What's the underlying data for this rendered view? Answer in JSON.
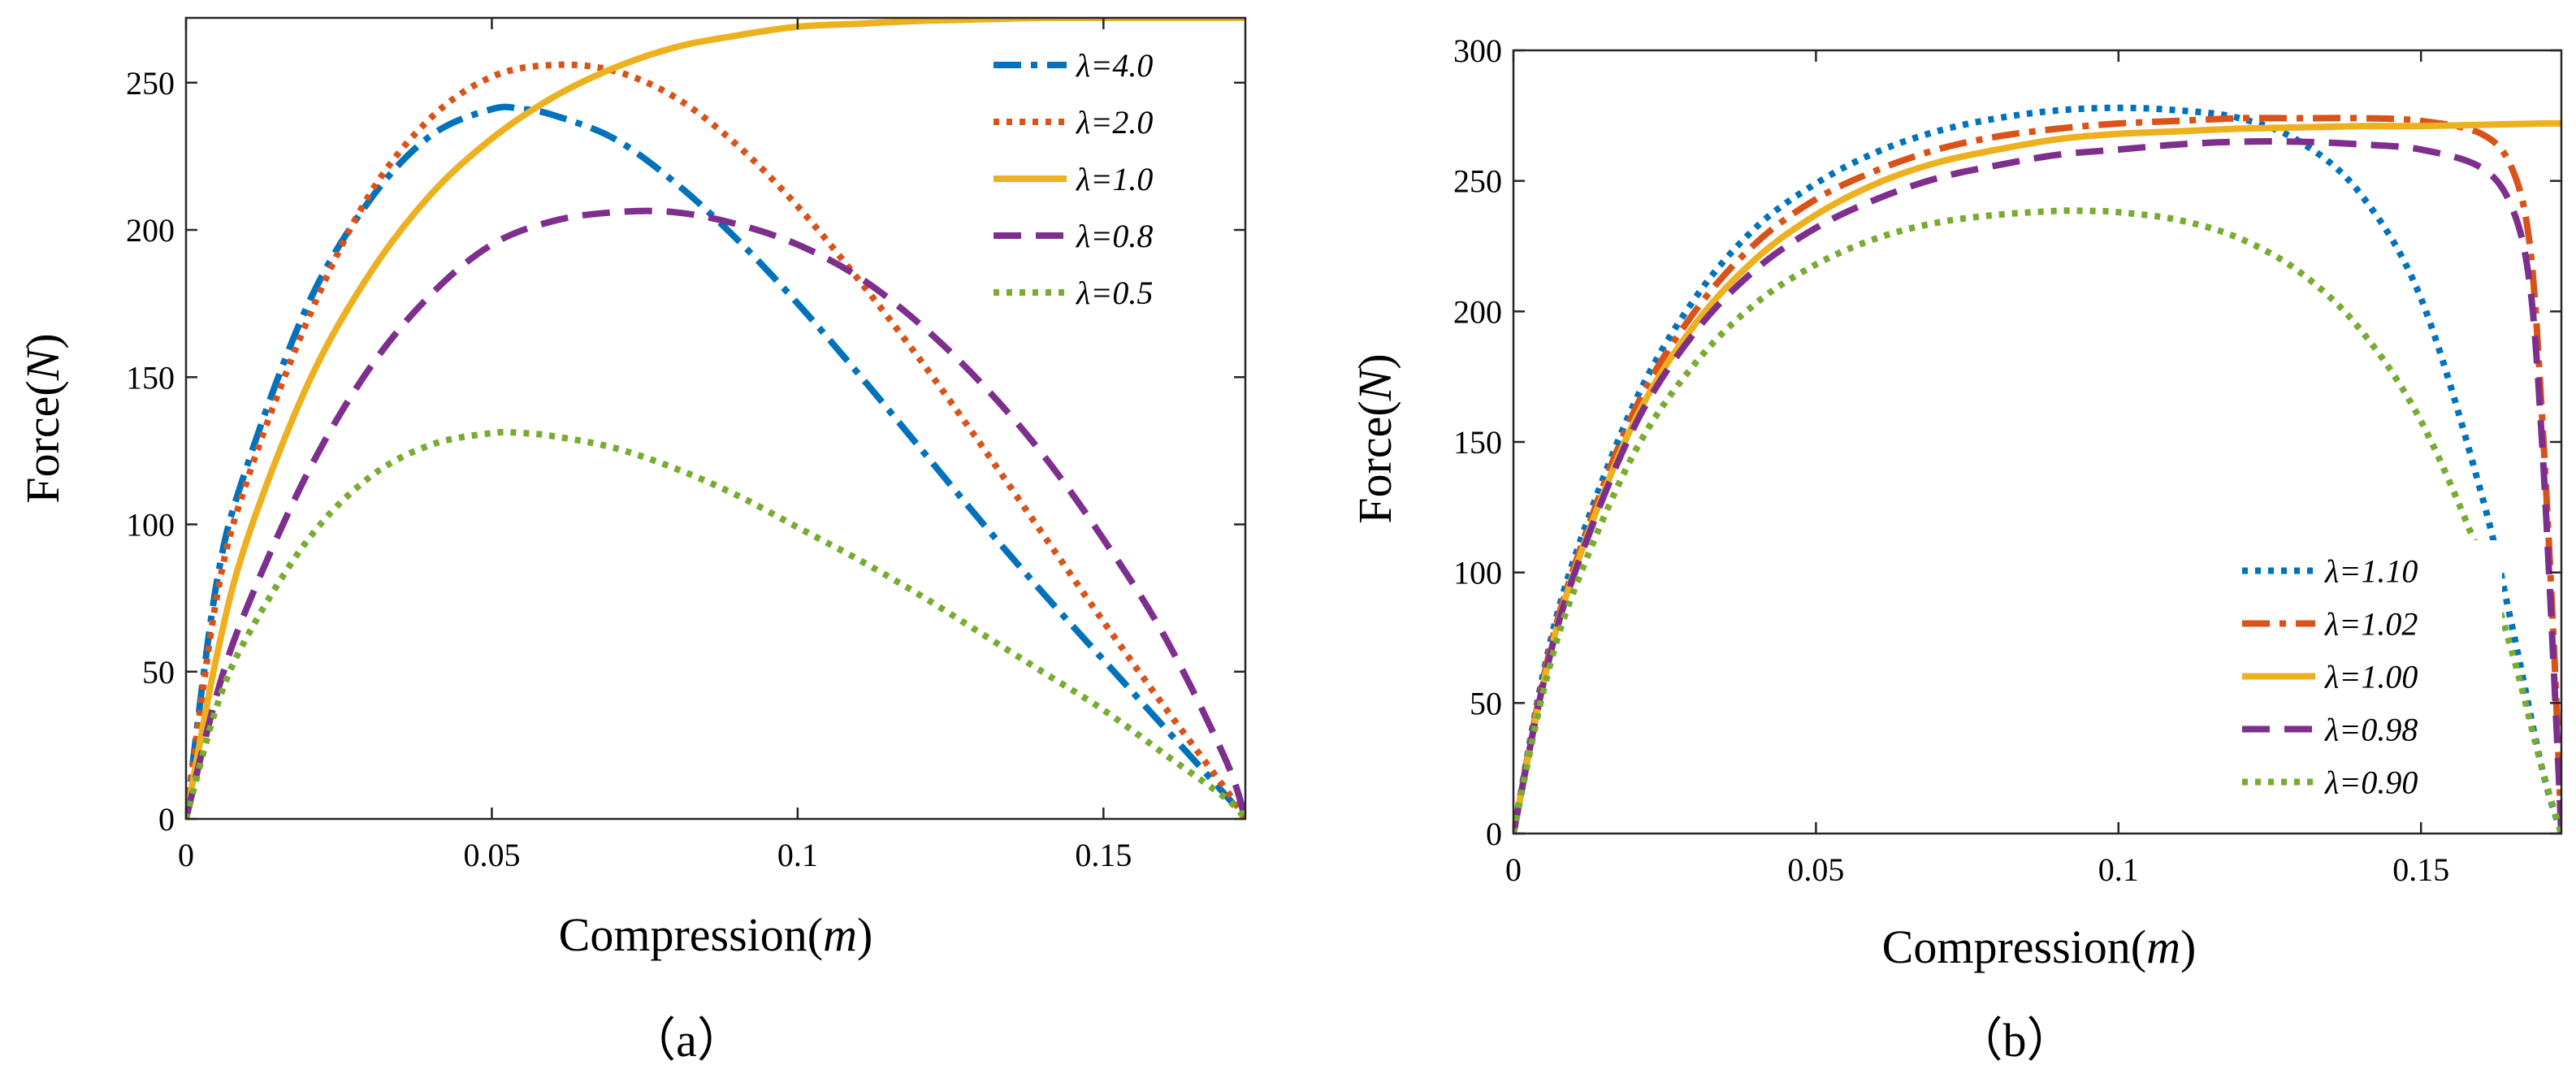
{
  "colors": {
    "blue": "#0072BD",
    "red": "#D95319",
    "yellow": "#EDB120",
    "purple": "#7E2F8E",
    "green": "#77AC30"
  },
  "chart_data": [
    {
      "type": "line",
      "panel_label": "（a）",
      "xlabel_main": "Compression(",
      "xlabel_unit": "m",
      "xlabel_close": ")",
      "ylabel_main": "Force(",
      "ylabel_unit": "N",
      "ylabel_close": ")",
      "xlim": [
        0,
        0.1732
      ],
      "ylim": [
        0,
        272
      ],
      "xticks": [
        0,
        0.05,
        0.1,
        0.15
      ],
      "xtick_labels": [
        "0",
        "0.05",
        "0.1",
        "0.15"
      ],
      "yticks": [
        0,
        50,
        100,
        150,
        200,
        250
      ],
      "ytick_labels": [
        "0",
        "50",
        "100",
        "150",
        "200",
        "250"
      ],
      "legend_position": "top-right",
      "series": [
        {
          "name": "λ=4.0",
          "color": "blue",
          "dash": "dashdot",
          "x": [
            0,
            0.005,
            0.01,
            0.02,
            0.03,
            0.04,
            0.05,
            0.055,
            0.06,
            0.07,
            0.08,
            0.09,
            0.1,
            0.11,
            0.12,
            0.13,
            0.14,
            0.15,
            0.16,
            0.17,
            0.1732
          ],
          "y": [
            0,
            80,
            120,
            175,
            210,
            232,
            241,
            241,
            239,
            231,
            216,
            197,
            175,
            151,
            126,
            101,
            77,
            54,
            31,
            8,
            0
          ]
        },
        {
          "name": "λ=2.0",
          "color": "red",
          "dash": "dotted",
          "x": [
            0,
            0.005,
            0.01,
            0.02,
            0.03,
            0.04,
            0.05,
            0.06,
            0.07,
            0.08,
            0.09,
            0.1,
            0.11,
            0.12,
            0.13,
            0.14,
            0.15,
            0.16,
            0.17,
            0.1732
          ],
          "y": [
            0,
            75,
            115,
            170,
            212,
            238,
            252,
            256,
            254,
            245,
            229,
            208,
            183,
            156,
            127,
            97,
            67,
            38,
            10,
            0
          ]
        },
        {
          "name": "λ=1.0",
          "color": "yellow",
          "dash": "solid",
          "x": [
            0,
            0.005,
            0.01,
            0.02,
            0.03,
            0.04,
            0.05,
            0.06,
            0.07,
            0.08,
            0.09,
            0.1,
            0.11,
            0.12,
            0.13,
            0.14,
            0.15,
            0.16,
            0.17,
            0.1732
          ],
          "y": [
            0,
            55,
            95,
            148,
            185,
            212,
            231,
            245,
            255,
            262,
            266,
            269,
            270,
            271,
            271.5,
            272,
            272,
            272,
            272,
            272
          ]
        },
        {
          "name": "λ=0.8",
          "color": "purple",
          "dash": "dashed",
          "x": [
            0,
            0.005,
            0.01,
            0.02,
            0.03,
            0.04,
            0.05,
            0.06,
            0.07,
            0.08,
            0.09,
            0.1,
            0.11,
            0.12,
            0.13,
            0.14,
            0.15,
            0.16,
            0.17,
            0.1732
          ],
          "y": [
            0,
            42,
            72,
            118,
            153,
            178,
            195,
            203,
            206,
            206,
            202,
            195,
            184,
            168,
            148,
            124,
            95,
            62,
            20,
            0
          ]
        },
        {
          "name": "λ=0.5",
          "color": "green",
          "dash": "dotted",
          "x": [
            0,
            0.005,
            0.01,
            0.02,
            0.03,
            0.04,
            0.05,
            0.055,
            0.06,
            0.07,
            0.08,
            0.09,
            0.1,
            0.11,
            0.12,
            0.13,
            0.14,
            0.15,
            0.16,
            0.17,
            0.1732
          ],
          "y": [
            0,
            38,
            62,
            95,
            116,
            127,
            131,
            131,
            130,
            126,
            119,
            110,
            99,
            88,
            76,
            63,
            50,
            37,
            22,
            7,
            0
          ]
        }
      ]
    },
    {
      "type": "line",
      "panel_label": "（b）",
      "xlabel_main": "Compression(",
      "xlabel_unit": "m",
      "xlabel_close": ")",
      "ylabel_main": "Force(",
      "ylabel_unit": "N",
      "ylabel_close": ")",
      "xlim": [
        0,
        0.1732
      ],
      "ylim": [
        0,
        300
      ],
      "xticks": [
        0,
        0.05,
        0.1,
        0.15
      ],
      "xtick_labels": [
        "0",
        "0.05",
        "0.1",
        "0.15"
      ],
      "yticks": [
        0,
        50,
        100,
        150,
        200,
        250,
        300
      ],
      "ytick_labels": [
        "0",
        "50",
        "100",
        "150",
        "200",
        "250",
        "300"
      ],
      "legend_position": "bottom-right",
      "series": [
        {
          "name": "λ=1.10",
          "color": "blue",
          "dash": "dotted",
          "x": [
            0,
            0.005,
            0.01,
            0.02,
            0.03,
            0.04,
            0.05,
            0.06,
            0.07,
            0.08,
            0.09,
            0.1,
            0.11,
            0.12,
            0.13,
            0.14,
            0.15,
            0.16,
            0.165,
            0.17,
            0.1732
          ],
          "y": [
            0,
            62,
            105,
            165,
            205,
            232,
            249,
            261,
            269,
            274,
            277,
            278,
            277,
            274,
            265,
            245,
            205,
            130,
            80,
            25,
            0
          ]
        },
        {
          "name": "λ=1.02",
          "color": "red",
          "dash": "dashdot",
          "x": [
            0,
            0.005,
            0.01,
            0.02,
            0.03,
            0.04,
            0.05,
            0.06,
            0.07,
            0.08,
            0.09,
            0.1,
            0.11,
            0.12,
            0.13,
            0.14,
            0.15,
            0.16,
            0.165,
            0.168,
            0.17,
            0.172,
            0.1732
          ],
          "y": [
            0,
            60,
            102,
            162,
            200,
            226,
            243,
            254,
            262,
            267,
            270,
            272,
            273,
            274,
            274,
            274,
            273,
            268,
            255,
            225,
            160,
            70,
            0
          ]
        },
        {
          "name": "λ=1.00",
          "color": "yellow",
          "dash": "solid",
          "x": [
            0,
            0.005,
            0.01,
            0.02,
            0.03,
            0.04,
            0.05,
            0.06,
            0.07,
            0.08,
            0.09,
            0.1,
            0.11,
            0.12,
            0.13,
            0.14,
            0.15,
            0.16,
            0.17,
            0.1732
          ],
          "y": [
            0,
            58,
            100,
            158,
            195,
            220,
            237,
            249,
            257,
            262,
            266,
            268,
            269,
            270,
            270.5,
            271,
            271,
            271.5,
            272,
            272
          ]
        },
        {
          "name": "λ=0.98",
          "color": "purple",
          "dash": "dashed",
          "x": [
            0,
            0.005,
            0.01,
            0.02,
            0.03,
            0.04,
            0.05,
            0.06,
            0.07,
            0.08,
            0.09,
            0.1,
            0.11,
            0.12,
            0.13,
            0.14,
            0.15,
            0.16,
            0.165,
            0.168,
            0.17,
            0.172,
            0.1732
          ],
          "y": [
            0,
            58,
            99,
            156,
            192,
            216,
            232,
            243,
            251,
            256,
            260,
            262,
            264,
            265,
            265,
            264,
            262,
            255,
            240,
            210,
            150,
            60,
            0
          ]
        },
        {
          "name": "λ=0.90",
          "color": "green",
          "dash": "dotted",
          "x": [
            0,
            0.005,
            0.01,
            0.02,
            0.03,
            0.04,
            0.05,
            0.06,
            0.07,
            0.08,
            0.09,
            0.095,
            0.1,
            0.11,
            0.12,
            0.13,
            0.14,
            0.15,
            0.16,
            0.165,
            0.17,
            0.1732
          ],
          "y": [
            0,
            55,
            93,
            146,
            180,
            203,
            218,
            228,
            234,
            237,
            238.5,
            238.5,
            238,
            235,
            228,
            215,
            193,
            158,
            105,
            70,
            25,
            0
          ]
        }
      ]
    }
  ]
}
